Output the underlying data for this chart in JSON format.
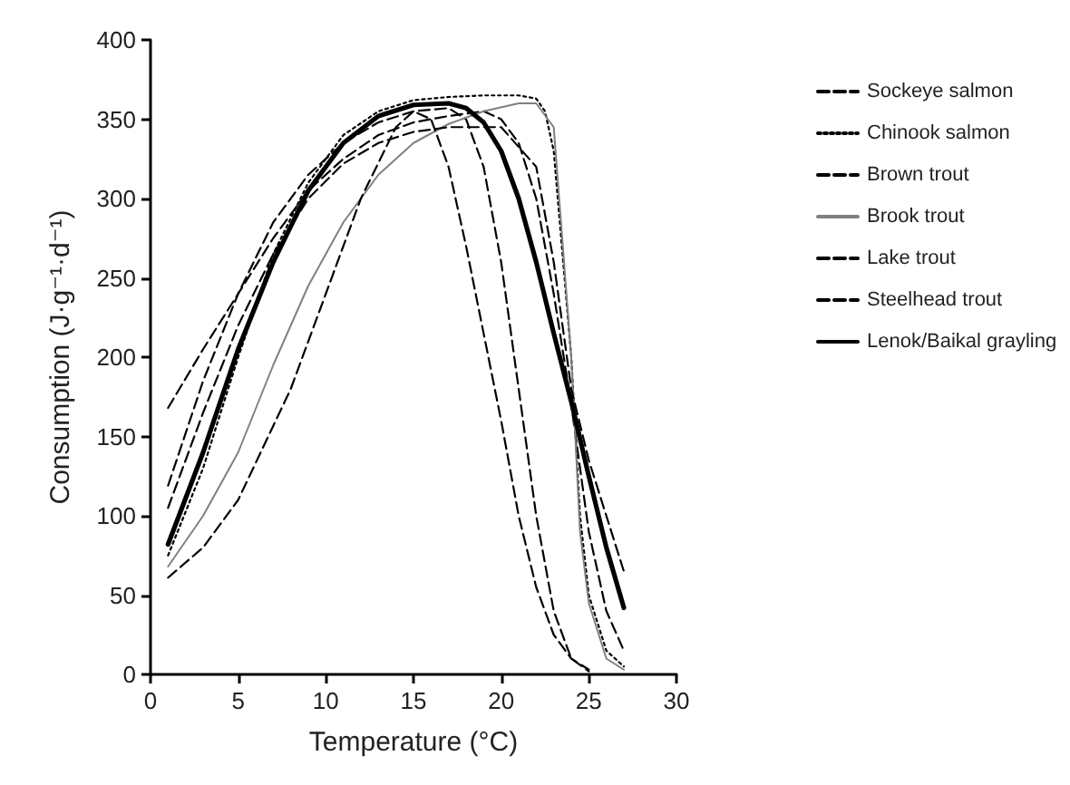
{
  "chart_data": {
    "type": "line",
    "xlabel": "Temperature (°C)",
    "ylabel": "Consumption (J·g⁻¹·d⁻¹)",
    "xlim": [
      0,
      30
    ],
    "xticks": [
      0,
      5,
      10,
      15,
      20,
      25,
      30
    ],
    "ylim": [
      0,
      400
    ],
    "yticks": [
      0,
      50,
      100,
      150,
      200,
      250,
      300,
      350,
      400
    ],
    "grid": false,
    "legend": "right",
    "marker": "none",
    "series": [
      {
        "name": "Sockeye salmon",
        "color": "#000000",
        "line_style": "dashed",
        "x": [
          1,
          3,
          5,
          7,
          9,
          11,
          13,
          15,
          17,
          19,
          20,
          21,
          22,
          23,
          24,
          25,
          26,
          27
        ],
        "values": [
          168,
          205,
          240,
          275,
          305,
          325,
          340,
          348,
          352,
          355,
          350,
          335,
          300,
          240,
          170,
          90,
          40,
          15
        ]
      },
      {
        "name": "Chinook salmon",
        "color": "#000000",
        "line_style": "dotted",
        "x": [
          1,
          3,
          5,
          7,
          9,
          11,
          13,
          15,
          17,
          19,
          21,
          22,
          22.5,
          23,
          24,
          24.5,
          25,
          26,
          27
        ],
        "values": [
          75,
          130,
          200,
          265,
          310,
          340,
          355,
          362,
          364,
          365,
          365,
          363,
          355,
          330,
          200,
          100,
          50,
          15,
          5
        ]
      },
      {
        "name": "Brown trout",
        "color": "#000000",
        "line_style": "dashed",
        "x": [
          1,
          3,
          5,
          7,
          9,
          11,
          13,
          15,
          17,
          18,
          19,
          20,
          21,
          22,
          23,
          24,
          25
        ],
        "values": [
          119,
          185,
          240,
          285,
          315,
          335,
          348,
          355,
          357,
          350,
          320,
          260,
          180,
          100,
          40,
          10,
          2
        ]
      },
      {
        "name": "Brook trout",
        "color": "#808080",
        "line_style": "solid",
        "x": [
          1,
          3,
          5,
          7,
          9,
          11,
          13,
          15,
          17,
          19,
          21,
          22,
          23,
          24,
          24.5,
          25,
          26,
          27
        ],
        "values": [
          68,
          100,
          140,
          195,
          245,
          285,
          315,
          335,
          347,
          355,
          360,
          360,
          345,
          200,
          90,
          45,
          10,
          3
        ]
      },
      {
        "name": "Lake trout",
        "color": "#000000",
        "line_style": "dashed",
        "x": [
          1,
          3,
          5,
          8,
          10,
          12,
          14,
          15,
          16,
          17,
          18,
          19,
          20,
          21,
          22,
          23,
          24,
          25
        ],
        "values": [
          61,
          80,
          110,
          180,
          240,
          300,
          345,
          355,
          350,
          320,
          270,
          215,
          160,
          100,
          55,
          25,
          10,
          3
        ]
      },
      {
        "name": "Steelhead trout",
        "color": "#000000",
        "line_style": "dashed",
        "x": [
          1,
          3,
          5,
          7,
          9,
          11,
          13,
          15,
          17,
          20,
          22,
          23,
          24,
          25,
          26,
          27
        ],
        "values": [
          105,
          165,
          220,
          265,
          300,
          322,
          335,
          342,
          345,
          345,
          320,
          260,
          180,
          135,
          100,
          65
        ]
      },
      {
        "name": "Lenok/Baikal grayling",
        "color": "#000000",
        "line_style": "solid",
        "x": [
          1,
          3,
          5,
          7,
          9,
          11,
          13,
          15,
          17,
          18,
          19,
          20,
          21,
          22,
          23,
          24,
          25,
          26,
          27
        ],
        "values": [
          82,
          140,
          205,
          260,
          305,
          335,
          352,
          359,
          360,
          357,
          348,
          330,
          300,
          260,
          215,
          172,
          125,
          80,
          42
        ]
      }
    ]
  }
}
